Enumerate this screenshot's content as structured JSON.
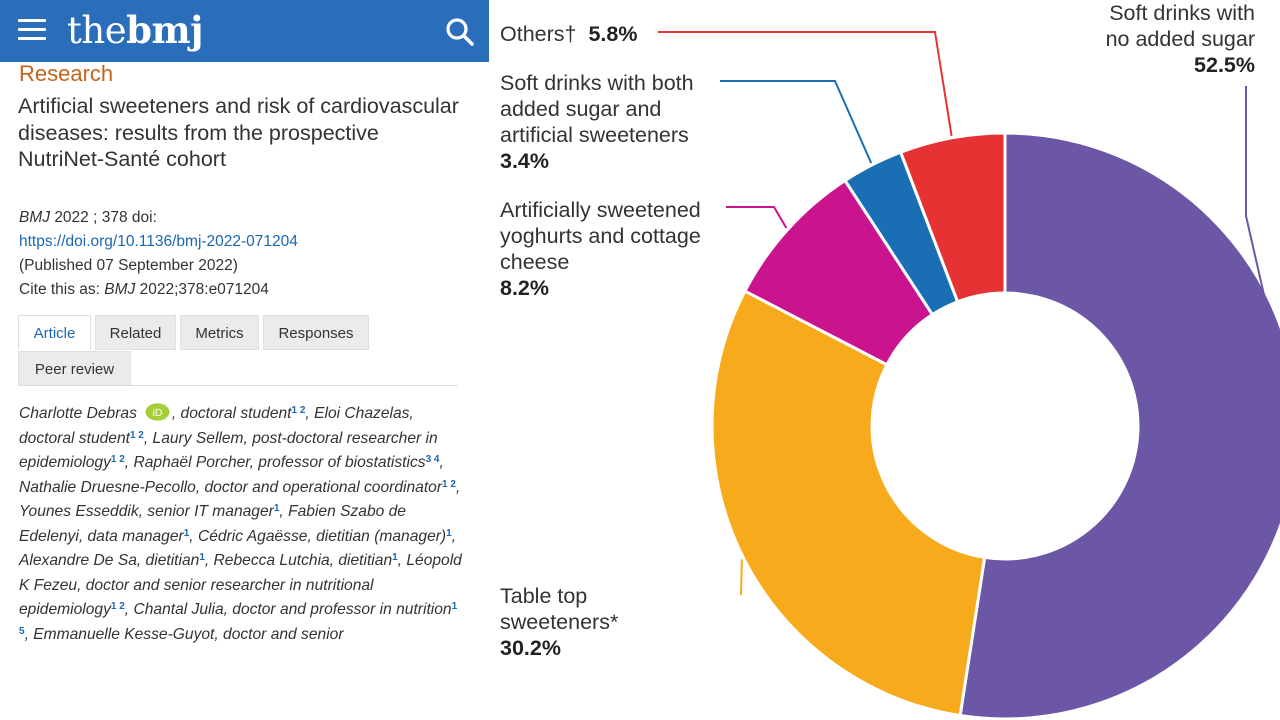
{
  "header": {
    "logo_regular": "the",
    "logo_bold": "bmj",
    "menu_icon": "hamburger-menu-icon",
    "search_icon": "search-icon",
    "bar_color": "#2a6ebb"
  },
  "article": {
    "section": "Research",
    "title": "Artificial sweeteners and risk of cardiovascular diseases: results from the prospective NutriNet-Santé cohort",
    "journal": "BMJ",
    "year_volume": "2022 ; 378",
    "doi_label": "doi:",
    "doi_url": "https://doi.org/10.1136/bmj-2022-071204",
    "published": "(Published 07 September 2022)",
    "cite_prefix": "Cite this as:",
    "cite_journal": "BMJ",
    "cite_ref": "2022;378:e071204"
  },
  "tabs": [
    {
      "label": "Article",
      "active": true
    },
    {
      "label": "Related",
      "active": false
    },
    {
      "label": "Metrics",
      "active": false
    },
    {
      "label": "Responses",
      "active": false
    },
    {
      "label": "Peer review",
      "active": false
    }
  ],
  "authors": [
    {
      "text": "Charlotte Debras",
      "orcid": true
    },
    {
      "text": ", doctoral student",
      "sup": "1 2"
    },
    {
      "text": ",  Eloi Chazelas, doctoral student",
      "sup": "1 2"
    },
    {
      "text": ",  Laury Sellem, post-doctoral researcher in epidemiology",
      "sup": "1 2"
    },
    {
      "text": ",  Raphaël Porcher, professor of biostatistics",
      "sup": "3 4"
    },
    {
      "text": ",  Nathalie Druesne-Pecollo, doctor and operational coordinator",
      "sup": "1 2"
    },
    {
      "text": ",  Younes Esseddik, senior IT manager",
      "sup": "1"
    },
    {
      "text": ",  Fabien Szabo de Edelenyi, data manager",
      "sup": "1"
    },
    {
      "text": ",  Cédric Agaësse, dietitian (manager)",
      "sup": "1"
    },
    {
      "text": ",  Alexandre De Sa, dietitian",
      "sup": "1"
    },
    {
      "text": ",  Rebecca Lutchia, dietitian",
      "sup": "1"
    },
    {
      "text": ",  Léopold K Fezeu, doctor and senior researcher in nutritional epidemiology",
      "sup": "1 2"
    },
    {
      "text": ",  Chantal Julia, doctor and professor in nutrition",
      "sup": "1 5"
    },
    {
      "text": ",  Emmanuelle Kesse-Guyot, doctor and senior"
    }
  ],
  "chart_data": {
    "type": "pie",
    "donut": true,
    "categories": [
      "Soft drinks with no added sugar",
      "Table top sweeteners*",
      "Artificially sweetened yoghurts and cottage cheese",
      "Soft drinks with both added sugar and artificial sweeteners",
      "Others†"
    ],
    "values": [
      52.5,
      30.2,
      8.2,
      3.4,
      5.8
    ],
    "value_labels": [
      "52.5%",
      "30.2%",
      "8.2%",
      "3.4%",
      "5.8%"
    ],
    "label_lines": [
      [
        "Soft drinks with",
        "no added sugar"
      ],
      [
        "Table top",
        "sweeteners*"
      ],
      [
        "Artificially sweetened",
        "yoghurts and cottage",
        "cheese"
      ],
      [
        "Soft drinks with both",
        "added sugar and",
        "artificial sweeteners"
      ],
      [
        "Others†"
      ]
    ],
    "colors": [
      "#6b57a5",
      "#f7ab1c",
      "#c9148d",
      "#1a6fb4",
      "#e63232"
    ],
    "start": "12 o'clock",
    "direction": "clockwise"
  }
}
